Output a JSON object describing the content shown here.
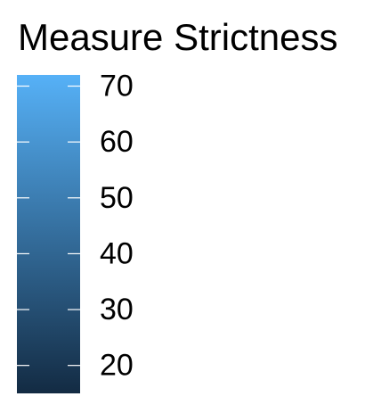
{
  "chart_data": {
    "type": "heatmap",
    "legend": {
      "title": "Measure Strictness",
      "kind": "continuous-colorbar",
      "range": [
        15,
        72
      ],
      "ticks": [
        20,
        30,
        40,
        50,
        60,
        70
      ],
      "tick_labels": [
        "20",
        "30",
        "40",
        "50",
        "60",
        "70"
      ],
      "colors": {
        "low": "#132b43",
        "high": "#56b1f7",
        "tick_mark": "#ffffff"
      }
    }
  }
}
